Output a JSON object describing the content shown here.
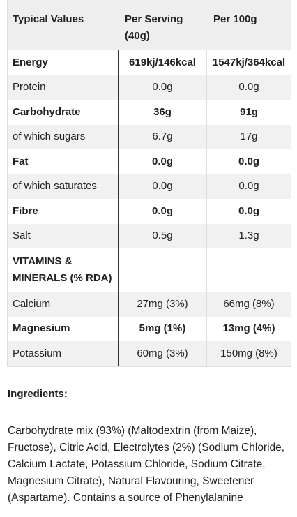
{
  "table": {
    "header": [
      "Typical Values",
      "Per Serving (40g)",
      "Per 100g"
    ],
    "rows": [
      {
        "cells": [
          "Energy",
          "619kj/146kcal",
          "1547kj/364kcal"
        ],
        "bold": true
      },
      {
        "cells": [
          "Protein",
          "0.0g",
          "0.0g"
        ],
        "bold": false
      },
      {
        "cells": [
          "Carbohydrate",
          "36g",
          "91g"
        ],
        "bold": true
      },
      {
        "cells": [
          "of which sugars",
          "6.7g",
          "17g"
        ],
        "bold": false
      },
      {
        "cells": [
          "Fat",
          "0.0g",
          "0.0g"
        ],
        "bold": true
      },
      {
        "cells": [
          "of which saturates",
          "0.0g",
          "0.0g"
        ],
        "bold": false
      },
      {
        "cells": [
          "Fibre",
          "0.0g",
          "0.0g"
        ],
        "bold": true
      },
      {
        "cells": [
          "Salt",
          "0.5g",
          "1.3g"
        ],
        "bold": false
      },
      {
        "cells": [
          "VITAMINS & MINERALS (% RDA)"
        ],
        "bold": true
      },
      {
        "cells": [
          "Calcium",
          "27mg (3%)",
          "66mg (8%)"
        ],
        "bold": false
      },
      {
        "cells": [
          "Magnesium",
          "5mg (1%)",
          "13mg (4%)"
        ],
        "bold": true
      },
      {
        "cells": [
          "Potassium",
          "60mg (3%)",
          "150mg (8%)"
        ],
        "bold": false
      }
    ]
  },
  "ingredients": {
    "title": "Ingredients:",
    "text": "Carbohydrate mix (93%) (Maltodextrin (from Maize), Fructose), Citric Acid, Electrolytes (2%) (Sodium Chloride, Calcium Lactate, Potassium Chloride, Sodium Citrate, Magnesium Citrate), Natural Flavouring, Sweetener (Aspartame). Contains a source of Phenylalanine"
  }
}
